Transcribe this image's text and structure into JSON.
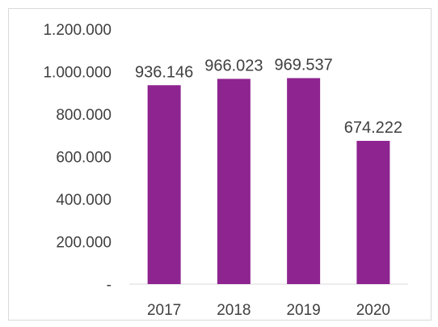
{
  "chart_data": {
    "type": "bar",
    "categories": [
      "2017",
      "2018",
      "2019",
      "2020"
    ],
    "values": [
      936146,
      966023,
      969537,
      674222
    ],
    "value_labels": [
      "936.146",
      "966.023",
      "969.537",
      "674.222"
    ],
    "y_ticks": [
      0,
      200000,
      400000,
      600000,
      800000,
      1000000,
      1200000
    ],
    "y_tick_labels": [
      "-",
      "200.000",
      "400.000",
      "600.000",
      "800.000",
      "1.000.000",
      "1.200.000"
    ],
    "ylim": [
      0,
      1200000
    ],
    "title": "",
    "xlabel": "",
    "ylabel": "",
    "grid": false,
    "legend": false,
    "bar_color": "#8e2490"
  }
}
